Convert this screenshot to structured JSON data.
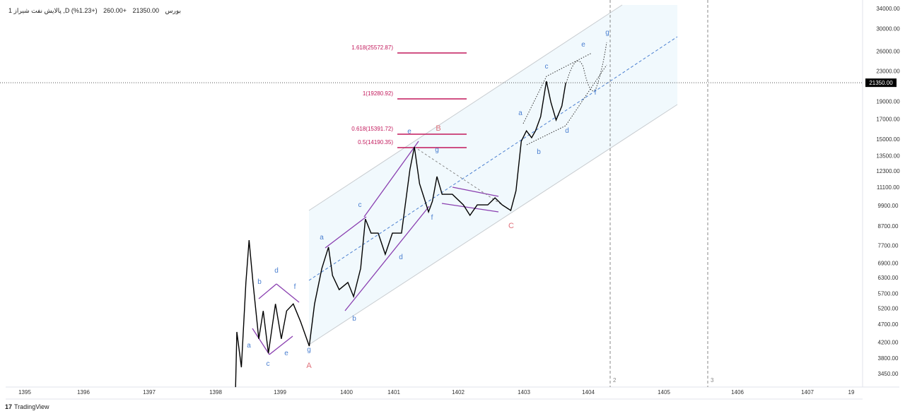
{
  "header": {
    "symbol": "پالایش نفت شیراز 1 ,D بورس",
    "price": "21350.00",
    "change": "+260.00",
    "change_pct": "(+1.23%)"
  },
  "price_tag": "21350.00",
  "branding": "TradingView",
  "colors": {
    "price": "#000000",
    "wave": "#4a7fd0",
    "major": "#e0707a",
    "pattern": "#8a3fb0",
    "fib": "#c2185b",
    "channel": "#c8ccd0",
    "fill": "#f1f9fd"
  },
  "chart_data": {
    "type": "line",
    "title": "پالایش نفت شیراز 1",
    "yscale": "log",
    "ylim": [
      3450,
      34000
    ],
    "y_ticks": [
      "34000.00",
      "30000.00",
      "26000.00",
      "23000.00",
      "19000.00",
      "17000.00",
      "15000.00",
      "13500.00",
      "12300.00",
      "11100.00",
      "9900.00",
      "8700.00",
      "7700.00",
      "6900.00",
      "6300.00",
      "5700.00",
      "5200.00",
      "4700.00",
      "4200.00",
      "3800.00",
      "3450.00"
    ],
    "x_ticks": [
      "1395",
      "1396",
      "1397",
      "1398",
      "1399",
      "1400",
      "1401",
      "1402",
      "1403",
      "1404",
      "1405",
      "1406",
      "1407",
      "19"
    ],
    "series": [
      {
        "name": "close",
        "points": [
          [
            1398.31,
            3170
          ],
          [
            1398.33,
            4480
          ],
          [
            1398.4,
            3590
          ],
          [
            1398.47,
            6110
          ],
          [
            1398.52,
            7960
          ],
          [
            1398.58,
            6110
          ],
          [
            1398.67,
            4290
          ],
          [
            1398.74,
            5110
          ],
          [
            1398.82,
            3920
          ],
          [
            1398.93,
            5340
          ],
          [
            1399.02,
            4290
          ],
          [
            1399.1,
            5110
          ],
          [
            1399.2,
            5340
          ],
          [
            1399.31,
            4780
          ],
          [
            1399.44,
            4100
          ],
          [
            1399.52,
            5340
          ],
          [
            1399.63,
            6670
          ],
          [
            1399.73,
            7620
          ],
          [
            1399.79,
            6380
          ],
          [
            1399.89,
            5840
          ],
          [
            1400.03,
            6110
          ],
          [
            1400.15,
            5590
          ],
          [
            1400.3,
            6670
          ],
          [
            1400.4,
            9090
          ],
          [
            1400.52,
            8320
          ],
          [
            1400.67,
            8320
          ],
          [
            1400.82,
            7290
          ],
          [
            1400.97,
            8320
          ],
          [
            1401.12,
            8320
          ],
          [
            1401.25,
            12400
          ],
          [
            1401.32,
            14280
          ],
          [
            1401.4,
            11340
          ],
          [
            1401.47,
            10380
          ],
          [
            1401.54,
            9500
          ],
          [
            1401.6,
            10160
          ],
          [
            1401.67,
            11860
          ],
          [
            1401.75,
            10610
          ],
          [
            1401.91,
            10610
          ],
          [
            1402.08,
            9930
          ],
          [
            1402.18,
            9300
          ],
          [
            1402.29,
            9930
          ],
          [
            1402.45,
            9930
          ],
          [
            1402.56,
            10380
          ],
          [
            1402.67,
            9930
          ],
          [
            1402.8,
            9590
          ],
          [
            1402.88,
            10850
          ],
          [
            1402.96,
            14800
          ],
          [
            1403.04,
            15800
          ],
          [
            1403.12,
            15130
          ],
          [
            1403.18,
            15800
          ],
          [
            1403.26,
            17270
          ],
          [
            1403.35,
            21550
          ],
          [
            1403.42,
            18870
          ],
          [
            1403.5,
            16900
          ],
          [
            1403.59,
            18460
          ],
          [
            1403.65,
            21350
          ]
        ]
      }
    ],
    "fib_levels": [
      "1.618(25572.87)",
      "1(19280.92)",
      "0.618(15391.72)",
      "0.5(14190.35)"
    ],
    "wave_labels": [
      "a",
      "b",
      "c",
      "d",
      "e",
      "f",
      "g",
      "a",
      "b",
      "c",
      "d",
      "e",
      "f",
      "g",
      "a",
      "b",
      "c",
      "d",
      "e",
      "f",
      "g"
    ],
    "major_labels": [
      "A",
      "B",
      "C"
    ],
    "vline_labels": [
      "2",
      "3"
    ]
  }
}
